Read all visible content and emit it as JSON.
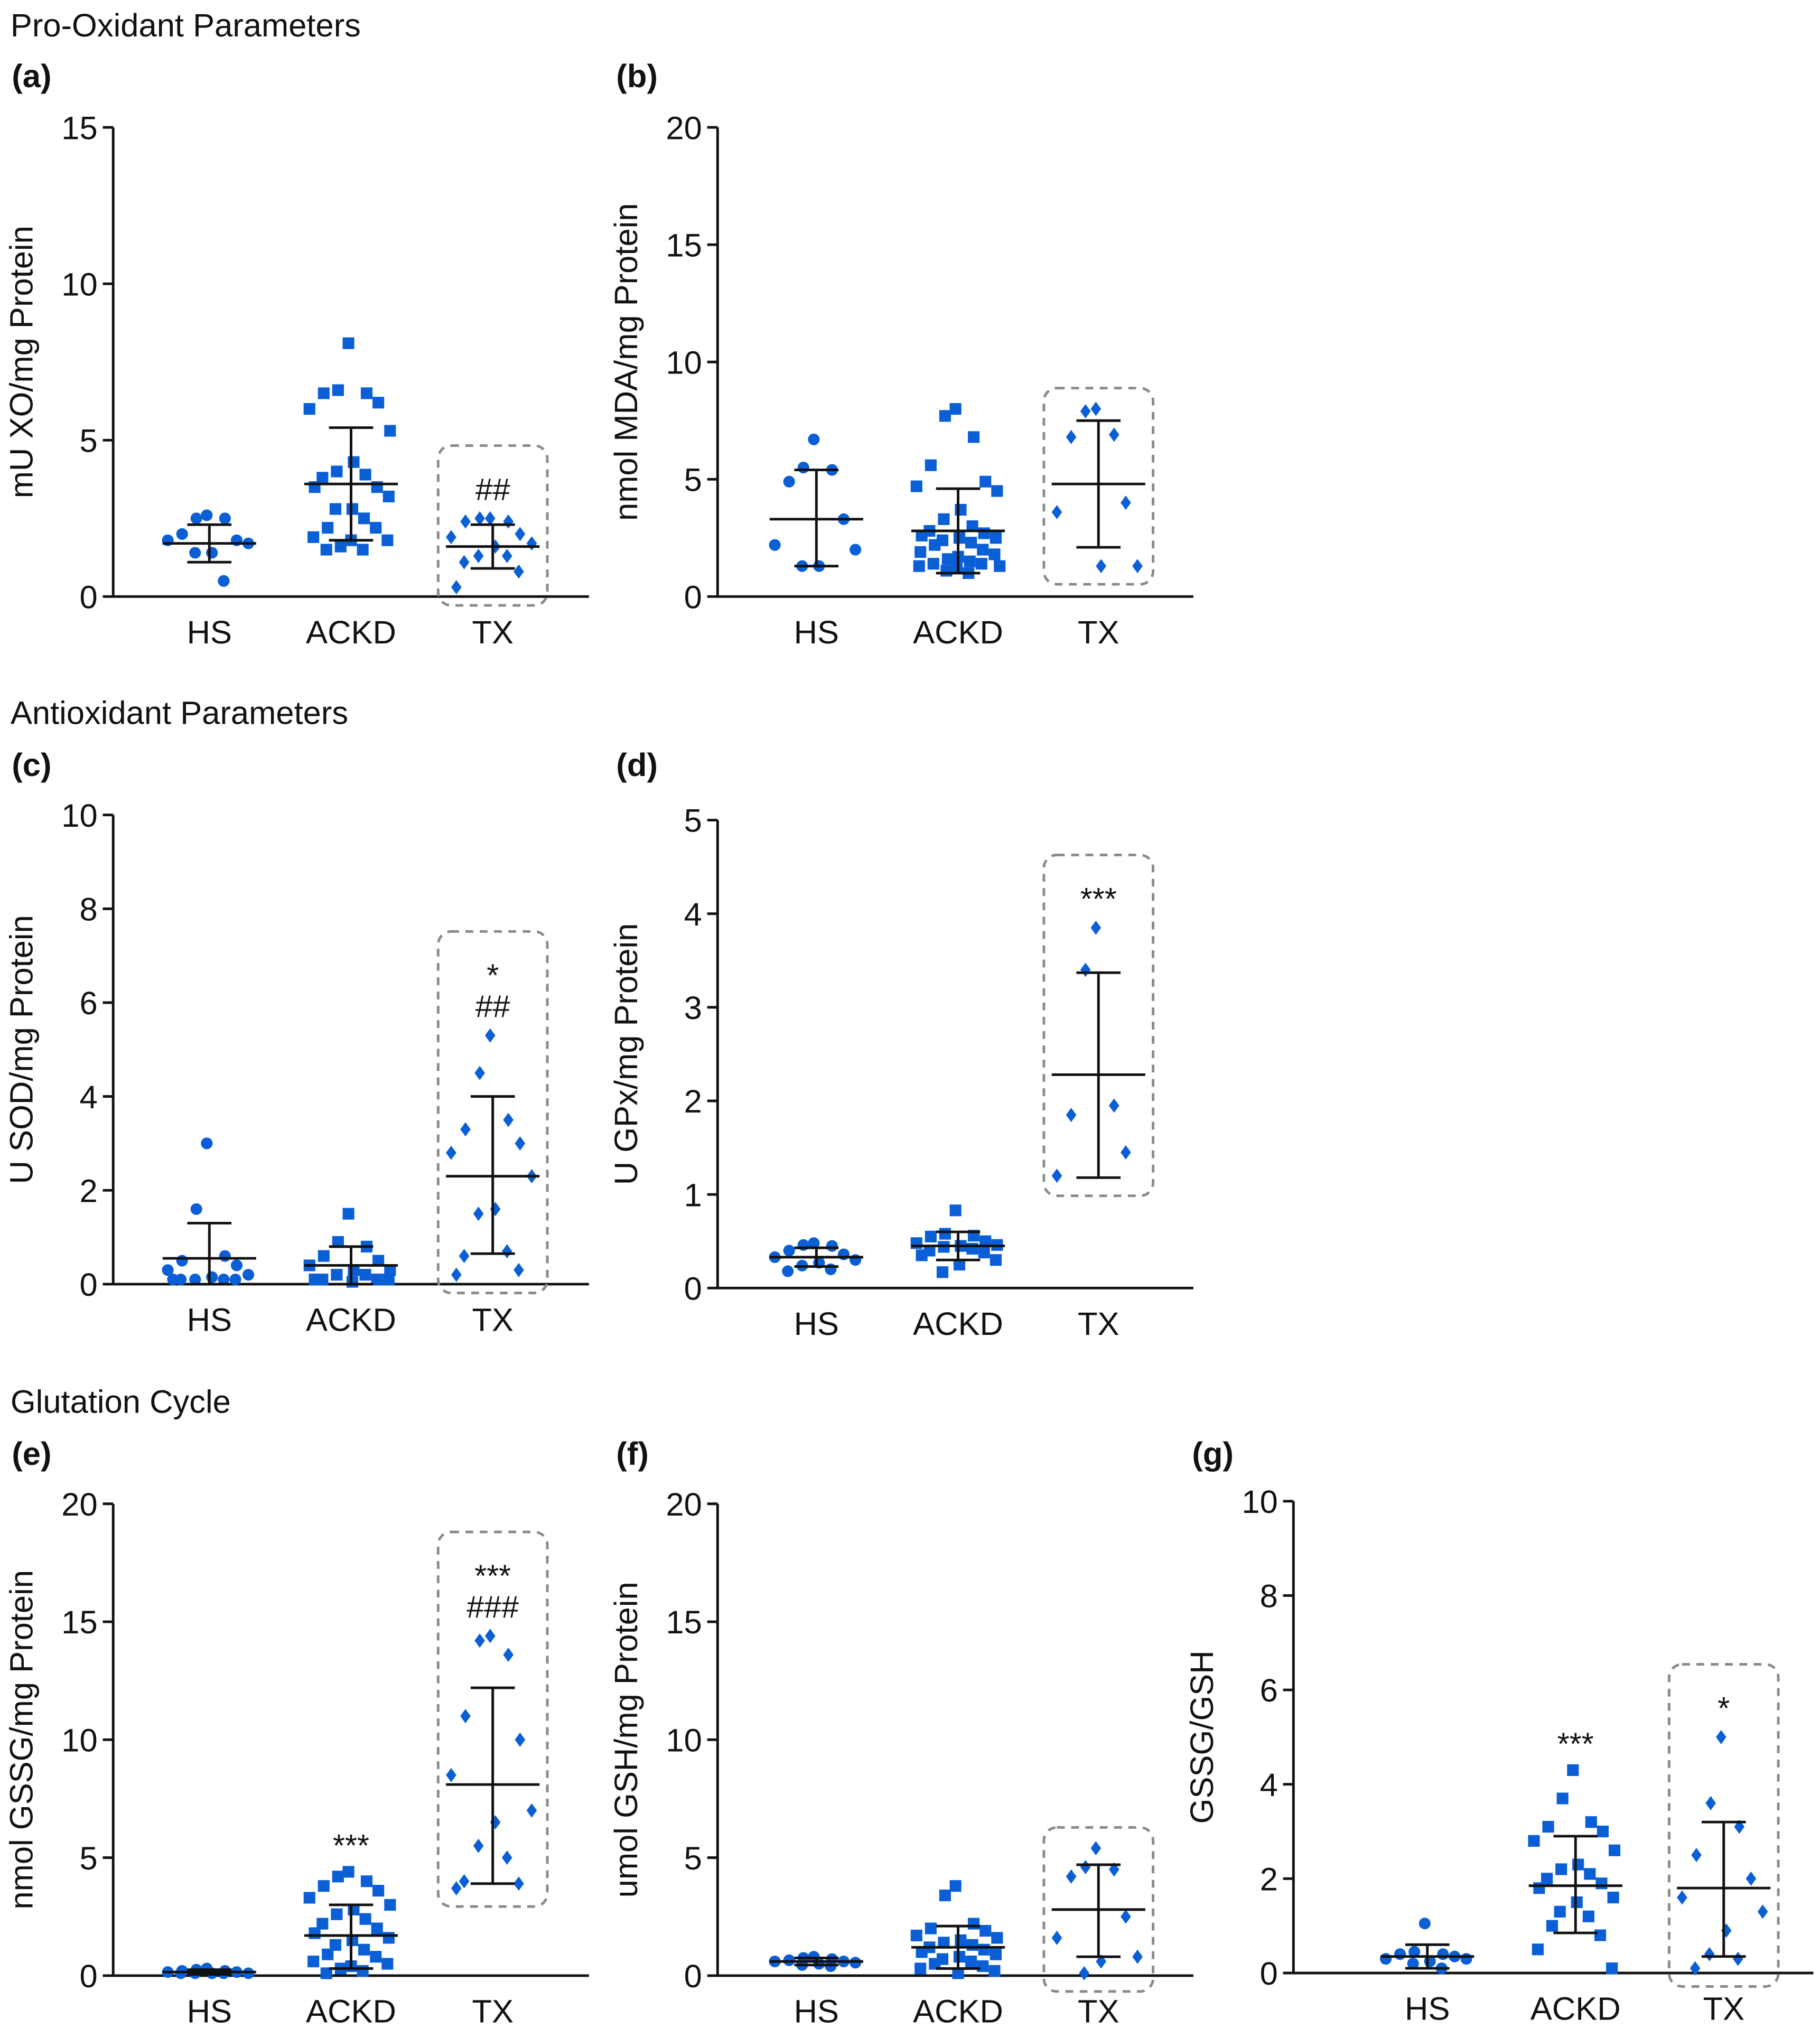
{
  "sections": [
    "Pro-Oxidant Parameters",
    "Antioxidant Parameters",
    "Glutation Cycle"
  ],
  "colors": {
    "marker": "#0a5fd6",
    "axis": "#111111",
    "box": "#8a8a8a"
  },
  "chart_data": [
    {
      "id": "a",
      "panel_label": "(a)",
      "type": "scatter",
      "ylabel": "mU XO/mg Protein",
      "ylim": [
        0,
        15
      ],
      "yticks": [
        0,
        5,
        10,
        15
      ],
      "categories": [
        "HS",
        "ACKD",
        "TX"
      ],
      "groups": [
        {
          "name": "HS",
          "marker": "circle",
          "mean": 1.7,
          "sd_upper": 2.3,
          "sd_lower": 1.1,
          "values": [
            2.6,
            2.5,
            2.5,
            2.0,
            1.8,
            1.8,
            1.7,
            1.4,
            1.4,
            0.5
          ]
        },
        {
          "name": "ACKD",
          "marker": "square",
          "mean": 3.6,
          "sd_upper": 5.4,
          "sd_lower": 1.8,
          "values": [
            8.1,
            6.6,
            6.5,
            6.5,
            6.2,
            6.0,
            5.3,
            4.3,
            4.0,
            3.9,
            3.8,
            3.5,
            3.5,
            3.2,
            2.8,
            2.8,
            2.5,
            2.2,
            2.2,
            1.9,
            1.8,
            1.8,
            1.6,
            1.5,
            1.5
          ]
        },
        {
          "name": "TX",
          "marker": "diamond",
          "mean": 1.6,
          "sd_upper": 2.3,
          "sd_lower": 0.9,
          "values": [
            2.5,
            2.5,
            2.4,
            2.4,
            2.0,
            1.9,
            1.7,
            1.6,
            1.3,
            1.3,
            1.1,
            0.8,
            0.3
          ],
          "annotations": [
            "##"
          ],
          "boxed": true
        }
      ]
    },
    {
      "id": "b",
      "panel_label": "(b)",
      "type": "scatter",
      "ylabel": "nmol MDA/mg Protein",
      "ylim": [
        0,
        20
      ],
      "yticks": [
        0,
        5,
        10,
        15,
        20
      ],
      "categories": [
        "HS",
        "ACKD",
        "TX"
      ],
      "groups": [
        {
          "name": "HS",
          "marker": "circle",
          "mean": 3.3,
          "sd_upper": 5.4,
          "sd_lower": 1.3,
          "values": [
            6.7,
            5.5,
            5.4,
            4.9,
            3.3,
            2.2,
            2.0,
            1.3,
            1.3
          ]
        },
        {
          "name": "ACKD",
          "marker": "square",
          "mean": 2.8,
          "sd_upper": 4.6,
          "sd_lower": 1.0,
          "values": [
            8.0,
            7.7,
            6.8,
            5.6,
            4.9,
            4.7,
            4.5,
            3.7,
            3.3,
            3.0,
            2.8,
            2.7,
            2.6,
            2.5,
            2.5,
            2.4,
            2.3,
            2.2,
            2.0,
            1.9,
            1.8,
            1.7,
            1.6,
            1.5,
            1.4,
            1.4,
            1.3,
            1.3,
            1.2,
            1.1,
            1.0
          ]
        },
        {
          "name": "TX",
          "marker": "diamond",
          "mean": 4.8,
          "sd_upper": 7.5,
          "sd_lower": 2.1,
          "values": [
            8.0,
            7.9,
            6.9,
            6.8,
            4.0,
            3.6,
            1.3,
            1.3
          ],
          "boxed": true
        }
      ]
    },
    {
      "id": "c",
      "panel_label": "(c)",
      "type": "scatter",
      "ylabel": "U SOD/mg Protein",
      "ylim": [
        0,
        10
      ],
      "yticks": [
        0,
        2,
        4,
        6,
        8,
        10
      ],
      "categories": [
        "HS",
        "ACKD",
        "TX"
      ],
      "groups": [
        {
          "name": "HS",
          "marker": "circle",
          "mean": 0.55,
          "sd_upper": 1.3,
          "sd_lower": 0,
          "values": [
            3.0,
            1.6,
            0.6,
            0.5,
            0.4,
            0.3,
            0.2,
            0.15,
            0.1,
            0.1,
            0.1,
            0.1,
            0.1
          ]
        },
        {
          "name": "ACKD",
          "marker": "square",
          "mean": 0.4,
          "sd_upper": 0.8,
          "sd_lower": 0,
          "values": [
            1.5,
            0.9,
            0.8,
            0.6,
            0.5,
            0.4,
            0.3,
            0.3,
            0.2,
            0.2,
            0.1,
            0.1,
            0.1,
            0.1,
            0.05
          ]
        },
        {
          "name": "TX",
          "marker": "diamond",
          "mean": 2.3,
          "sd_upper": 4.0,
          "sd_lower": 0.65,
          "values": [
            5.3,
            4.5,
            3.5,
            3.3,
            3.0,
            2.8,
            2.3,
            1.6,
            1.5,
            0.7,
            0.6,
            0.3,
            0.2
          ],
          "annotations": [
            "*",
            "##"
          ],
          "boxed": true
        }
      ]
    },
    {
      "id": "d",
      "panel_label": "(d)",
      "type": "scatter",
      "ylabel": "U GPx/mg Protein",
      "ylim": [
        0,
        5
      ],
      "yticks": [
        0,
        1,
        2,
        3,
        4,
        5
      ],
      "categories": [
        "HS",
        "ACKD",
        "TX"
      ],
      "groups": [
        {
          "name": "HS",
          "marker": "circle",
          "mean": 0.33,
          "sd_upper": 0.43,
          "sd_lower": 0.23,
          "values": [
            0.48,
            0.46,
            0.45,
            0.4,
            0.36,
            0.33,
            0.3,
            0.27,
            0.24,
            0.2,
            0.18
          ]
        },
        {
          "name": "ACKD",
          "marker": "square",
          "mean": 0.45,
          "sd_upper": 0.6,
          "sd_lower": 0.3,
          "values": [
            0.83,
            0.58,
            0.56,
            0.55,
            0.5,
            0.48,
            0.46,
            0.45,
            0.44,
            0.42,
            0.4,
            0.38,
            0.35,
            0.3,
            0.25,
            0.17
          ]
        },
        {
          "name": "TX",
          "marker": "diamond",
          "mean": 2.28,
          "sd_upper": 3.37,
          "sd_lower": 1.18,
          "values": [
            3.85,
            3.4,
            1.95,
            1.85,
            1.45,
            1.2
          ],
          "annotations": [
            "***"
          ],
          "boxed": true
        }
      ]
    },
    {
      "id": "e",
      "panel_label": "(e)",
      "type": "scatter",
      "ylabel": "nmol GSSG/mg Protein",
      "ylim": [
        0,
        20
      ],
      "yticks": [
        0,
        5,
        10,
        15,
        20
      ],
      "categories": [
        "HS",
        "ACKD",
        "TX"
      ],
      "groups": [
        {
          "name": "HS",
          "marker": "circle",
          "mean": 0.15,
          "sd_upper": 0.25,
          "sd_lower": 0.05,
          "values": [
            0.3,
            0.25,
            0.2,
            0.2,
            0.15,
            0.15,
            0.1,
            0.1,
            0.1,
            0.1,
            0.1
          ]
        },
        {
          "name": "ACKD",
          "marker": "square",
          "mean": 1.7,
          "sd_upper": 3.0,
          "sd_lower": 0.3,
          "values": [
            4.4,
            4.2,
            4.0,
            3.8,
            3.6,
            3.3,
            3.0,
            2.8,
            2.6,
            2.4,
            2.2,
            2.0,
            1.8,
            1.6,
            1.5,
            1.3,
            1.1,
            0.9,
            0.8,
            0.6,
            0.5,
            0.4,
            0.3,
            0.2,
            0.1
          ]
        },
        {
          "name": "TX",
          "marker": "diamond",
          "mean": 8.1,
          "sd_upper": 12.2,
          "sd_lower": 3.9,
          "values": [
            14.4,
            14.2,
            13.6,
            11.0,
            10.0,
            8.5,
            7.0,
            6.5,
            5.5,
            5.0,
            4.0,
            3.9,
            3.7
          ],
          "annotations": [
            "***",
            "###"
          ],
          "boxed": true
        }
      ],
      "group_annotations": {
        "ACKD": [
          "***"
        ]
      }
    },
    {
      "id": "f",
      "panel_label": "(f)",
      "type": "scatter",
      "ylabel": "umol GSH/mg Protein",
      "ylim": [
        0,
        20
      ],
      "yticks": [
        0,
        5,
        10,
        15,
        20
      ],
      "categories": [
        "HS",
        "ACKD",
        "TX"
      ],
      "groups": [
        {
          "name": "HS",
          "marker": "circle",
          "mean": 0.6,
          "sd_upper": 0.75,
          "sd_lower": 0.45,
          "values": [
            0.8,
            0.75,
            0.7,
            0.65,
            0.6,
            0.6,
            0.55,
            0.5,
            0.45,
            0.4
          ]
        },
        {
          "name": "ACKD",
          "marker": "square",
          "mean": 1.2,
          "sd_upper": 2.1,
          "sd_lower": 0.3,
          "values": [
            3.8,
            3.4,
            2.2,
            2.0,
            1.9,
            1.7,
            1.6,
            1.5,
            1.4,
            1.3,
            1.2,
            1.1,
            1.0,
            0.9,
            0.8,
            0.7,
            0.6,
            0.5,
            0.4,
            0.3,
            0.2,
            0.1
          ]
        },
        {
          "name": "TX",
          "marker": "diamond",
          "mean": 2.8,
          "sd_upper": 4.7,
          "sd_lower": 0.8,
          "values": [
            5.4,
            4.6,
            4.5,
            4.2,
            2.5,
            1.6,
            0.8,
            0.6,
            0.1
          ],
          "boxed": true
        }
      ]
    },
    {
      "id": "g",
      "panel_label": "(g)",
      "type": "scatter",
      "ylabel": "GSSG/GSH",
      "ylim": [
        0,
        10
      ],
      "yticks": [
        0,
        2,
        4,
        6,
        8,
        10
      ],
      "categories": [
        "HS",
        "ACKD",
        "TX"
      ],
      "groups": [
        {
          "name": "HS",
          "marker": "circle",
          "mean": 0.35,
          "sd_upper": 0.6,
          "sd_lower": 0.1,
          "values": [
            1.05,
            0.45,
            0.4,
            0.4,
            0.35,
            0.3,
            0.3,
            0.25,
            0.2,
            0.1
          ]
        },
        {
          "name": "ACKD",
          "marker": "square",
          "mean": 1.85,
          "sd_upper": 2.9,
          "sd_lower": 0.85,
          "values": [
            4.3,
            3.7,
            3.2,
            3.1,
            3.0,
            2.8,
            2.6,
            2.3,
            2.2,
            2.1,
            2.0,
            1.9,
            1.8,
            1.6,
            1.5,
            1.3,
            1.2,
            1.0,
            0.8,
            0.5,
            0.1
          ]
        },
        {
          "name": "TX",
          "marker": "diamond",
          "mean": 1.8,
          "sd_upper": 3.2,
          "sd_lower": 0.35,
          "values": [
            5.0,
            3.6,
            3.1,
            2.5,
            2.0,
            1.6,
            1.3,
            0.9,
            0.4,
            0.3,
            0.1
          ],
          "annotations": [
            "*"
          ],
          "boxed": true
        }
      ],
      "group_annotations": {
        "ACKD": [
          "***"
        ]
      }
    }
  ]
}
